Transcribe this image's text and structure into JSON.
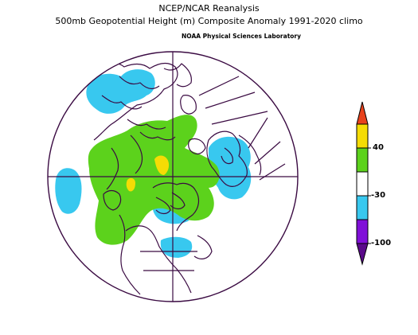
{
  "title_line1": "NCEP/NCAR Reanalysis",
  "title_line2": "500mb Geopotential Height (m) Composite Anomaly 1991-2020 climo",
  "credit": "NOAA Physical Sciences Laboratory",
  "colorbar": {
    "labels": [
      "40",
      "-30",
      "-100"
    ],
    "colors": {
      "top": "#e8421c",
      "yellow": "#f5dc05",
      "green": "#5cd21c",
      "white": "#ffffff",
      "cyan": "#38c8ef",
      "purple": "#8010d8",
      "deep_purple": "#5a0a8a"
    }
  },
  "colors": {
    "land_lines": "#3a0a42",
    "positive_anomaly": "#5cd21c",
    "strong_positive": "#f5dc05",
    "negative_anomaly": "#38c8ef"
  }
}
